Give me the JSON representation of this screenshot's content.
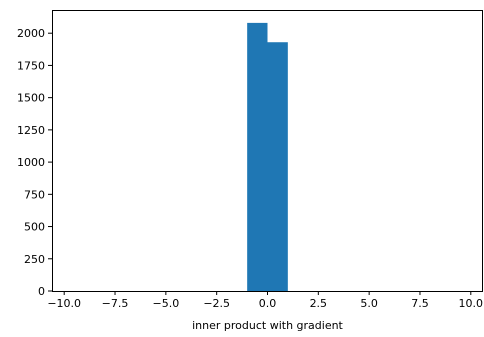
{
  "chart_data": {
    "type": "bar",
    "title": "",
    "xlabel": "inner product with gradient",
    "ylabel": "",
    "xlim": [
      -10.6,
      10.6
    ],
    "ylim": [
      0,
      2180
    ],
    "grid": false,
    "bar_color": "#1f77b4",
    "bins": [
      {
        "x0": -1.0,
        "x1": 0.0,
        "count": 2080
      },
      {
        "x0": 0.0,
        "x1": 1.0,
        "count": 1930
      }
    ],
    "xticks": [
      {
        "value": -10.0,
        "label": "−10.0"
      },
      {
        "value": -7.5,
        "label": "−7.5"
      },
      {
        "value": -5.0,
        "label": "−5.0"
      },
      {
        "value": -2.5,
        "label": "−2.5"
      },
      {
        "value": 0.0,
        "label": "0.0"
      },
      {
        "value": 2.5,
        "label": "2.5"
      },
      {
        "value": 5.0,
        "label": "5.0"
      },
      {
        "value": 7.5,
        "label": "7.5"
      },
      {
        "value": 10.0,
        "label": "10.0"
      }
    ],
    "yticks": [
      {
        "value": 0,
        "label": "0"
      },
      {
        "value": 250,
        "label": "250"
      },
      {
        "value": 500,
        "label": "500"
      },
      {
        "value": 750,
        "label": "750"
      },
      {
        "value": 1000,
        "label": "1000"
      },
      {
        "value": 1250,
        "label": "1250"
      },
      {
        "value": 1500,
        "label": "1500"
      },
      {
        "value": 1750,
        "label": "1750"
      },
      {
        "value": 2000,
        "label": "2000"
      }
    ]
  }
}
